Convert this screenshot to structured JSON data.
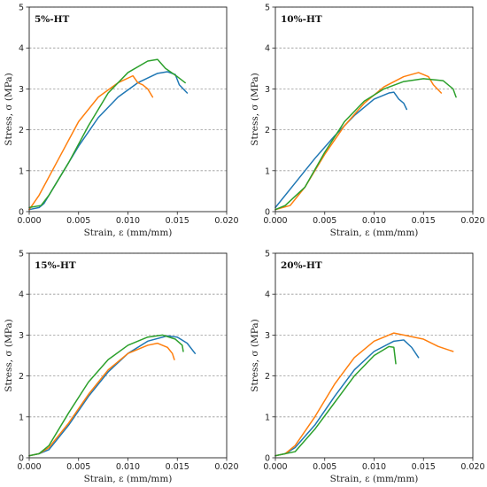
{
  "chart_data": [
    {
      "type": "line",
      "title": "5%-HT",
      "xlabel": "Strain, ε (mm/mm)",
      "ylabel": "Stress, σ (MPa)",
      "xlim": [
        0,
        0.02
      ],
      "ylim": [
        0,
        5
      ],
      "xticks": [
        "0.000",
        "0.005",
        "0.010",
        "0.015",
        "0.020"
      ],
      "yticks": [
        "0",
        "1",
        "2",
        "3",
        "4",
        "5"
      ],
      "grid": "horizontal dashed",
      "series": [
        {
          "color": "#1f77b4",
          "points": [
            [
              0,
              0.05
            ],
            [
              0.001,
              0.1
            ],
            [
              0.0015,
              0.2
            ],
            [
              0.003,
              0.8
            ],
            [
              0.005,
              1.6
            ],
            [
              0.007,
              2.3
            ],
            [
              0.009,
              2.8
            ],
            [
              0.011,
              3.15
            ],
            [
              0.013,
              3.38
            ],
            [
              0.014,
              3.42
            ],
            [
              0.0148,
              3.35
            ],
            [
              0.0152,
              3.1
            ],
            [
              0.016,
              2.9
            ]
          ]
        },
        {
          "color": "#ff7f0e",
          "points": [
            [
              0,
              0.05
            ],
            [
              0.001,
              0.4
            ],
            [
              0.003,
              1.3
            ],
            [
              0.005,
              2.2
            ],
            [
              0.007,
              2.8
            ],
            [
              0.009,
              3.15
            ],
            [
              0.0105,
              3.32
            ],
            [
              0.011,
              3.15
            ],
            [
              0.0115,
              3.1
            ],
            [
              0.012,
              3.0
            ],
            [
              0.0125,
              2.8
            ]
          ]
        },
        {
          "color": "#2ca02c",
          "points": [
            [
              0,
              0.1
            ],
            [
              0.0012,
              0.15
            ],
            [
              0.002,
              0.4
            ],
            [
              0.004,
              1.2
            ],
            [
              0.006,
              2.1
            ],
            [
              0.008,
              2.9
            ],
            [
              0.01,
              3.4
            ],
            [
              0.012,
              3.68
            ],
            [
              0.013,
              3.72
            ],
            [
              0.0138,
              3.5
            ],
            [
              0.015,
              3.3
            ],
            [
              0.0158,
              3.15
            ]
          ]
        }
      ]
    },
    {
      "type": "line",
      "title": "10%-HT",
      "xlabel": "Strain, ε (mm/mm)",
      "ylabel": "Stress, σ (MPa)",
      "xlim": [
        0,
        0.02
      ],
      "ylim": [
        0,
        5
      ],
      "xticks": [
        "0.000",
        "0.005",
        "0.010",
        "0.015",
        "0.020"
      ],
      "yticks": [
        "0",
        "1",
        "2",
        "3",
        "4",
        "5"
      ],
      "grid": "horizontal dashed",
      "series": [
        {
          "color": "#1f77b4",
          "points": [
            [
              0,
              0.1
            ],
            [
              0.002,
              0.7
            ],
            [
              0.004,
              1.3
            ],
            [
              0.006,
              1.85
            ],
            [
              0.008,
              2.35
            ],
            [
              0.01,
              2.75
            ],
            [
              0.0115,
              2.9
            ],
            [
              0.012,
              2.92
            ],
            [
              0.0125,
              2.75
            ],
            [
              0.013,
              2.65
            ],
            [
              0.0133,
              2.5
            ]
          ]
        },
        {
          "color": "#ff7f0e",
          "points": [
            [
              0,
              0.05
            ],
            [
              0.0015,
              0.15
            ],
            [
              0.003,
              0.6
            ],
            [
              0.005,
              1.4
            ],
            [
              0.007,
              2.1
            ],
            [
              0.009,
              2.65
            ],
            [
              0.011,
              3.05
            ],
            [
              0.013,
              3.3
            ],
            [
              0.0145,
              3.4
            ],
            [
              0.0155,
              3.3
            ],
            [
              0.016,
              3.1
            ],
            [
              0.0168,
              2.9
            ]
          ]
        },
        {
          "color": "#2ca02c",
          "points": [
            [
              0,
              0.05
            ],
            [
              0.001,
              0.15
            ],
            [
              0.003,
              0.6
            ],
            [
              0.005,
              1.45
            ],
            [
              0.007,
              2.2
            ],
            [
              0.009,
              2.7
            ],
            [
              0.011,
              3.0
            ],
            [
              0.013,
              3.18
            ],
            [
              0.015,
              3.25
            ],
            [
              0.017,
              3.2
            ],
            [
              0.018,
              3.0
            ],
            [
              0.0183,
              2.8
            ]
          ]
        }
      ]
    },
    {
      "type": "line",
      "title": "15%-HT",
      "xlabel": "Strain, ε (mm/mm)",
      "ylabel": "Stress, σ (MPa)",
      "xlim": [
        0,
        0.02
      ],
      "ylim": [
        0,
        5
      ],
      "xticks": [
        "0.000",
        "0.005",
        "0.010",
        "0.015",
        "0.020"
      ],
      "yticks": [
        "0",
        "1",
        "2",
        "3",
        "4",
        "5"
      ],
      "grid": "horizontal dashed",
      "series": [
        {
          "color": "#1f77b4",
          "points": [
            [
              0,
              0.05
            ],
            [
              0.001,
              0.1
            ],
            [
              0.002,
              0.2
            ],
            [
              0.004,
              0.8
            ],
            [
              0.006,
              1.5
            ],
            [
              0.008,
              2.1
            ],
            [
              0.01,
              2.55
            ],
            [
              0.012,
              2.85
            ],
            [
              0.014,
              2.98
            ],
            [
              0.015,
              2.95
            ],
            [
              0.016,
              2.8
            ],
            [
              0.0168,
              2.55
            ]
          ]
        },
        {
          "color": "#ff7f0e",
          "points": [
            [
              0,
              0.05
            ],
            [
              0.001,
              0.1
            ],
            [
              0.002,
              0.25
            ],
            [
              0.004,
              0.85
            ],
            [
              0.006,
              1.55
            ],
            [
              0.008,
              2.15
            ],
            [
              0.01,
              2.55
            ],
            [
              0.012,
              2.75
            ],
            [
              0.013,
              2.8
            ],
            [
              0.014,
              2.7
            ],
            [
              0.0145,
              2.55
            ],
            [
              0.0147,
              2.4
            ]
          ]
        },
        {
          "color": "#2ca02c",
          "points": [
            [
              0,
              0.05
            ],
            [
              0.001,
              0.1
            ],
            [
              0.002,
              0.3
            ],
            [
              0.004,
              1.1
            ],
            [
              0.006,
              1.85
            ],
            [
              0.008,
              2.4
            ],
            [
              0.01,
              2.75
            ],
            [
              0.012,
              2.95
            ],
            [
              0.0135,
              3.0
            ],
            [
              0.0148,
              2.9
            ],
            [
              0.0155,
              2.75
            ],
            [
              0.0156,
              2.6
            ]
          ]
        }
      ]
    },
    {
      "type": "line",
      "title": "20%-HT",
      "xlabel": "Strain, ε (mm/mm)",
      "ylabel": "Stress, σ (MPa)",
      "xlim": [
        0,
        0.02
      ],
      "ylim": [
        0,
        5
      ],
      "xticks": [
        "0.000",
        "0.005",
        "0.010",
        "0.015",
        "0.020"
      ],
      "yticks": [
        "0",
        "1",
        "2",
        "3",
        "4",
        "5"
      ],
      "grid": "horizontal dashed",
      "series": [
        {
          "color": "#1f77b4",
          "points": [
            [
              0,
              0.05
            ],
            [
              0.001,
              0.1
            ],
            [
              0.002,
              0.25
            ],
            [
              0.004,
              0.8
            ],
            [
              0.006,
              1.5
            ],
            [
              0.008,
              2.15
            ],
            [
              0.01,
              2.6
            ],
            [
              0.012,
              2.85
            ],
            [
              0.013,
              2.88
            ],
            [
              0.0138,
              2.7
            ],
            [
              0.0145,
              2.45
            ]
          ]
        },
        {
          "color": "#ff7f0e",
          "points": [
            [
              0,
              0.05
            ],
            [
              0.001,
              0.1
            ],
            [
              0.002,
              0.3
            ],
            [
              0.004,
              1.0
            ],
            [
              0.006,
              1.8
            ],
            [
              0.008,
              2.45
            ],
            [
              0.01,
              2.85
            ],
            [
              0.012,
              3.05
            ],
            [
              0.013,
              3.0
            ],
            [
              0.015,
              2.9
            ],
            [
              0.0165,
              2.72
            ],
            [
              0.018,
              2.6
            ]
          ]
        },
        {
          "color": "#2ca02c",
          "points": [
            [
              0,
              0.05
            ],
            [
              0.001,
              0.1
            ],
            [
              0.002,
              0.15
            ],
            [
              0.004,
              0.7
            ],
            [
              0.006,
              1.35
            ],
            [
              0.008,
              2.0
            ],
            [
              0.01,
              2.5
            ],
            [
              0.0115,
              2.72
            ],
            [
              0.012,
              2.7
            ],
            [
              0.0122,
              2.3
            ]
          ]
        }
      ]
    }
  ]
}
